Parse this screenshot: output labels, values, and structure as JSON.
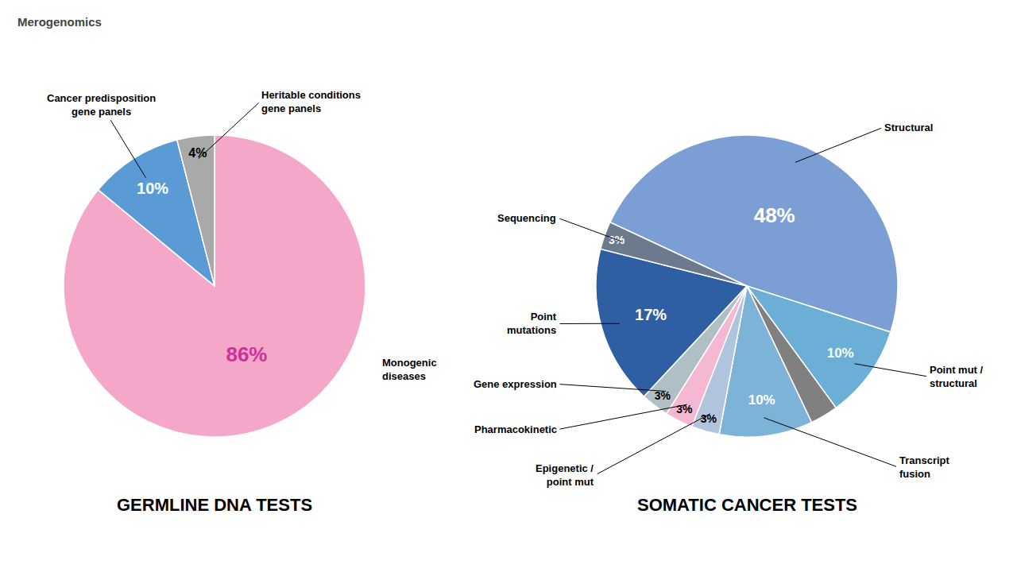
{
  "chart_data": [
    {
      "type": "pie",
      "title": "GERMLINE DNA TESTS",
      "categories": [
        "Monogenic\ndiseases",
        "Cancer predisposition\ngene panels",
        "Heritable conditions\ngene panels"
      ],
      "values": [
        86,
        10,
        4
      ],
      "value_labels": [
        "86%",
        "10%",
        "4%"
      ],
      "colors": [
        "#f4a7c9",
        "#5b9bd5",
        "#a9a9a9"
      ],
      "data_labels": true,
      "annotations": [
        "Merogenomics"
      ]
    },
    {
      "type": "pie",
      "title": "SOMATIC CANCER TESTS",
      "categories": [
        "Structural",
        "Point mut /\nstructural",
        null,
        "Transcript\nfusion",
        "Epigenetic /\npoint mut",
        "Pharmacokinetic",
        "Gene expression",
        "Point\nmutations",
        "Sequencing"
      ],
      "values": [
        48,
        10,
        3,
        10,
        3,
        3,
        3,
        17,
        3
      ],
      "value_labels": [
        "48%",
        "10%",
        null,
        "10%",
        "3%",
        "3%",
        "3%",
        "17%",
        "3%"
      ],
      "colors": [
        "#7b9fd4",
        "#6baed6",
        "#808080",
        "#7eb3d8",
        "#b0c4de",
        "#f4b8d3",
        "#b0bec5",
        "#2e5fa3",
        "#6b7b8d"
      ],
      "data_labels": true
    }
  ]
}
